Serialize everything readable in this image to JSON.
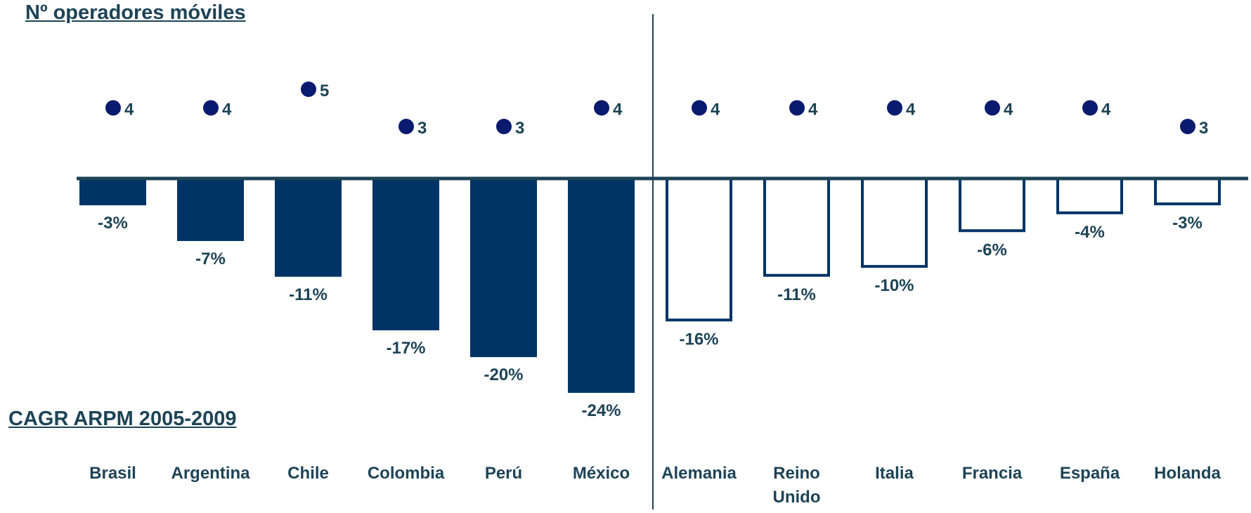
{
  "titles": {
    "operators": "Nº operadores móviles",
    "cagr": "CAGR ARPM 2005-2009"
  },
  "colors": {
    "navy": "#003366",
    "dot": "#0a1a6e",
    "axis": "#1d4356",
    "text": "#1d4356"
  },
  "chart_data": {
    "type": "bar",
    "categories": [
      "Brasil",
      "Argentina",
      "Chile",
      "Colombia",
      "Perú",
      "México",
      "Alemania",
      "Reino Unido",
      "Italia",
      "Francia",
      "España",
      "Holanda"
    ],
    "category_lines": [
      [
        "Brasil"
      ],
      [
        "Argentina"
      ],
      [
        "Chile"
      ],
      [
        "Colombia"
      ],
      [
        "Perú"
      ],
      [
        "México"
      ],
      [
        "Alemania"
      ],
      [
        "Reino",
        "Unido"
      ],
      [
        "Italia"
      ],
      [
        "Francia"
      ],
      [
        "España"
      ],
      [
        "Holanda"
      ]
    ],
    "groups": [
      "latam",
      "latam",
      "latam",
      "latam",
      "latam",
      "latam",
      "europe",
      "europe",
      "europe",
      "europe",
      "europe",
      "europe"
    ],
    "series": [
      {
        "values": [
          -3,
          -7,
          -11,
          -17,
          -20,
          -24,
          -16,
          -11,
          -10,
          -6,
          -4,
          -3
        ],
        "labels": [
          "-3%",
          "-7%",
          "-11%",
          "-17%",
          "-20%",
          "-24%",
          "-16%",
          "-11%",
          "-10%",
          "-6%",
          "-4%",
          "-3%"
        ]
      },
      {
        "values": [
          4,
          4,
          5,
          3,
          3,
          4,
          4,
          4,
          4,
          4,
          4,
          3
        ],
        "labels": [
          "4",
          "4",
          "5",
          "3",
          "3",
          "4",
          "4",
          "4",
          "4",
          "4",
          "4",
          "3"
        ]
      }
    ],
    "ylim": [
      -24,
      0
    ],
    "operators_range": [
      3,
      5
    ],
    "bar_style": {
      "latam": "filled",
      "europe": "outline"
    },
    "grid": false,
    "legend": "none"
  }
}
